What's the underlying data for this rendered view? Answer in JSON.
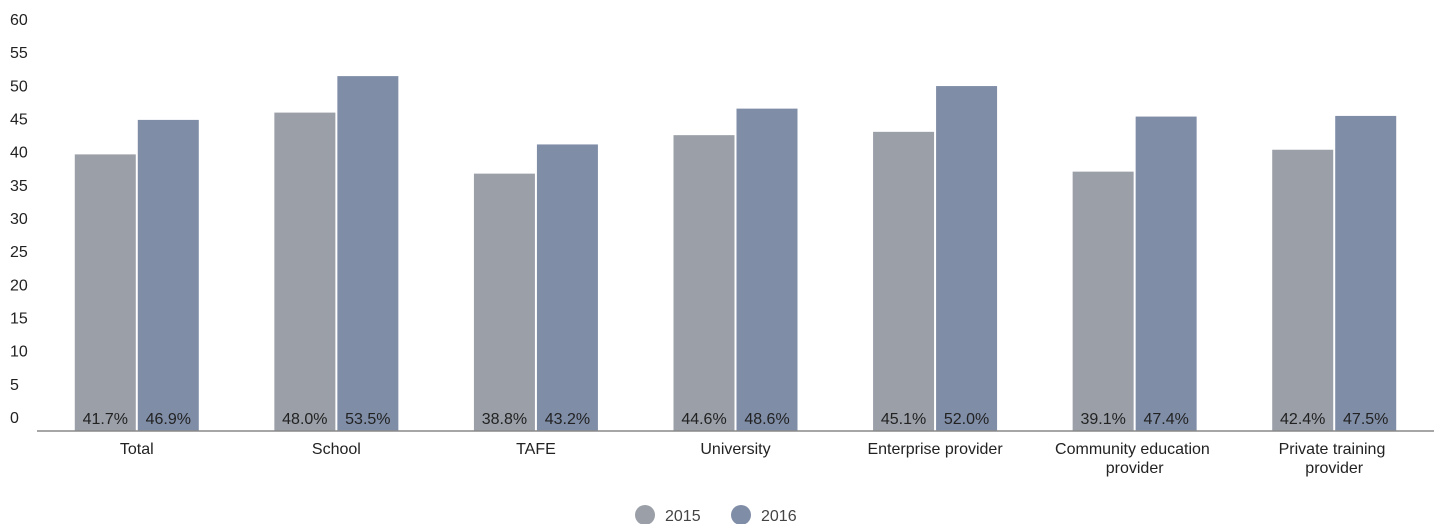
{
  "chart_data": {
    "type": "bar",
    "categories": [
      "Total",
      "School",
      "TAFE",
      "University",
      "Enterprise provider",
      "Community education provider",
      "Private training provider"
    ],
    "series": [
      {
        "name": "2015",
        "color": "#9a9fa8",
        "values": [
          41.7,
          48.0,
          38.8,
          44.6,
          45.1,
          39.1,
          42.4
        ],
        "value_labels": [
          "41.7%",
          "48.0%",
          "38.8%",
          "44.6%",
          "45.1%",
          "39.1%",
          "42.4%"
        ]
      },
      {
        "name": "2016",
        "color": "#7f8da7",
        "values": [
          46.9,
          53.5,
          43.2,
          48.6,
          52.0,
          47.4,
          47.5
        ],
        "value_labels": [
          "46.9%",
          "53.5%",
          "43.2%",
          "48.6%",
          "52.0%",
          "47.4%",
          "47.5%"
        ]
      }
    ],
    "ylim": [
      0,
      60
    ],
    "yticks": [
      0,
      5,
      10,
      15,
      20,
      25,
      30,
      35,
      40,
      45,
      50,
      55,
      60
    ],
    "grid": false
  }
}
